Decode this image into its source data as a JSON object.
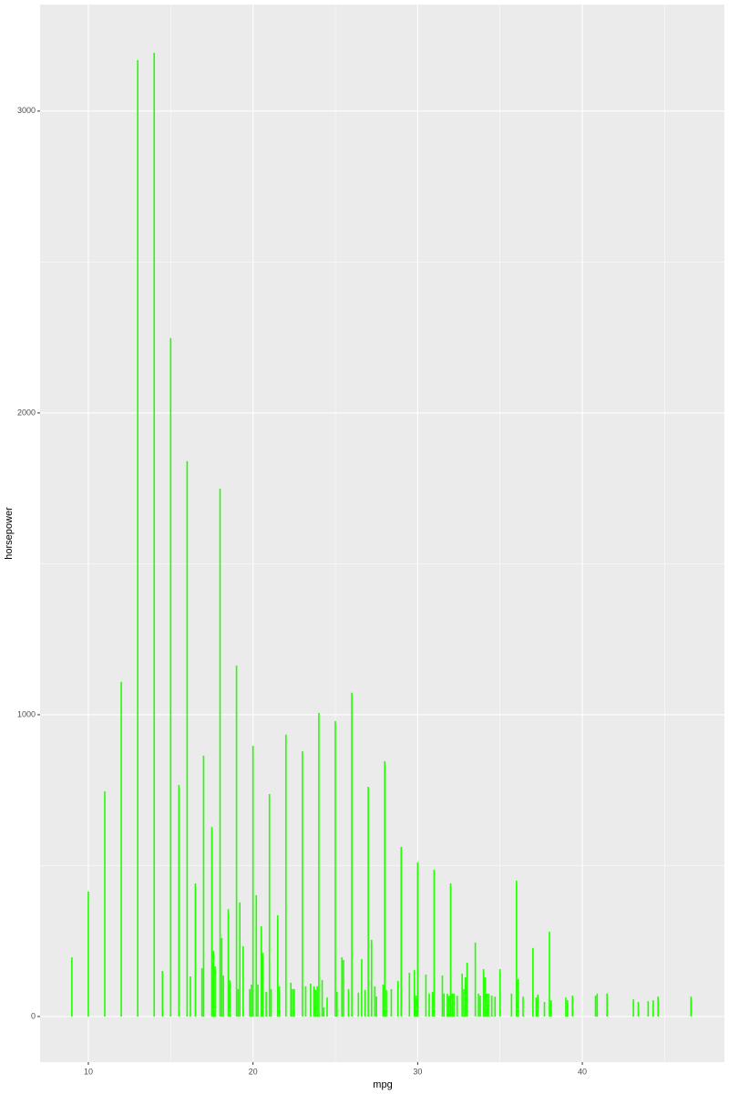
{
  "chart_data": {
    "type": "bar",
    "x_label": "mpg",
    "y_label": "horsepower",
    "x": [
      9,
      10,
      11,
      12,
      13,
      14,
      14.5,
      15,
      15.5,
      16,
      16.2,
      16.5,
      16.9,
      17,
      17.5,
      17.6,
      17.7,
      18,
      18.1,
      18.2,
      18.5,
      18.6,
      19,
      19.1,
      19.2,
      19.4,
      19.8,
      19.9,
      20,
      20.2,
      20.3,
      20.5,
      20.6,
      20.8,
      21,
      21.1,
      21.5,
      21.6,
      22,
      22.3,
      22.4,
      22.5,
      23,
      23.2,
      23.5,
      23.7,
      23.8,
      23.9,
      24,
      24.2,
      24.3,
      24.5,
      25,
      25.1,
      25.4,
      25.5,
      25.8,
      26,
      26.4,
      26.6,
      26.8,
      27,
      27.2,
      27.4,
      27.5,
      27.9,
      28,
      28.1,
      28.4,
      28.8,
      29,
      29.5,
      29.8,
      29.9,
      30,
      30.5,
      30.7,
      30.9,
      31,
      31.5,
      31.6,
      31.8,
      31.9,
      32,
      32.1,
      32.2,
      32.4,
      32.7,
      32.8,
      32.9,
      33,
      33.5,
      33.7,
      33.8,
      34,
      34.1,
      34.2,
      34.3,
      34.5,
      34.7,
      35,
      35.7,
      36,
      36.1,
      36.4,
      37,
      37.2,
      37.3,
      37.7,
      38,
      38.1,
      39,
      39.1,
      39.4,
      40.8,
      40.9,
      41.5,
      43.1,
      43.4,
      44,
      44.3,
      44.6,
      46.6
    ],
    "values": [
      196,
      414,
      746,
      1109,
      3169,
      3193,
      151,
      2248,
      767,
      1840,
      133,
      441,
      160,
      864,
      628,
      218,
      166,
      1749,
      260,
      136,
      356,
      120,
      1163,
      91,
      378,
      233,
      91,
      106,
      897,
      402,
      106,
      299,
      211,
      82,
      737,
      91,
      335,
      100,
      934,
      112,
      91,
      91,
      879,
      100,
      109,
      100,
      88,
      100,
      1006,
      121,
      30,
      63,
      979,
      82,
      196,
      187,
      91,
      1073,
      79,
      190,
      88,
      761,
      254,
      100,
      66,
      106,
      846,
      88,
      91,
      118,
      562,
      145,
      154,
      69,
      511,
      139,
      76,
      82,
      486,
      136,
      76,
      76,
      69,
      441,
      76,
      76,
      69,
      142,
      91,
      130,
      178,
      245,
      76,
      69,
      157,
      130,
      76,
      76,
      69,
      66,
      157,
      76,
      450,
      124,
      66,
      227,
      63,
      73,
      48,
      281,
      54,
      63,
      54,
      69,
      69,
      76,
      76,
      57,
      48,
      51,
      54,
      66,
      66
    ],
    "color": "#22ff00",
    "xlim": [
      7.07,
      48.63
    ],
    "xticks": [
      10,
      20,
      30,
      40
    ],
    "xminor": [
      5,
      15,
      25,
      35,
      45
    ],
    "ylim": [
      -151,
      3353
    ],
    "yticks": [
      0,
      1000,
      2000,
      3000
    ],
    "yminor": [
      500,
      1500,
      2500
    ],
    "grid": true
  }
}
